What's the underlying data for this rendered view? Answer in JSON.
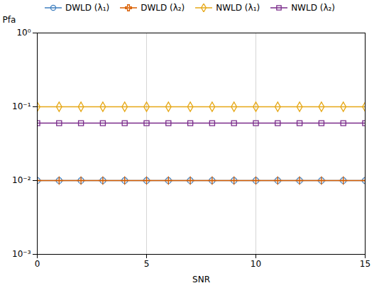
{
  "chart_data": {
    "type": "line",
    "xlabel": "SNR",
    "ylabel": "Pfa",
    "x": [
      0,
      1,
      2,
      3,
      4,
      5,
      6,
      7,
      8,
      9,
      10,
      11,
      12,
      13,
      14,
      15
    ],
    "series": [
      {
        "name": "DWLD (λ₁)",
        "color": "#3F7FBF",
        "marker": "circle",
        "values": [
          0.01,
          0.01,
          0.01,
          0.01,
          0.01,
          0.01,
          0.01,
          0.01,
          0.01,
          0.01,
          0.01,
          0.01,
          0.01,
          0.01,
          0.01,
          0.01
        ]
      },
      {
        "name": "DWLD (λ₂)",
        "color": "#D95F02",
        "marker": "plus",
        "values": [
          0.01,
          0.01,
          0.01,
          0.01,
          0.01,
          0.01,
          0.01,
          0.01,
          0.01,
          0.01,
          0.01,
          0.01,
          0.01,
          0.01,
          0.01,
          0.01
        ]
      },
      {
        "name": "NWLD (λ₁)",
        "color": "#E6A817",
        "marker": "diamond",
        "values": [
          0.1,
          0.1,
          0.1,
          0.1,
          0.1,
          0.1,
          0.1,
          0.1,
          0.1,
          0.1,
          0.1,
          0.1,
          0.1,
          0.1,
          0.1,
          0.1
        ]
      },
      {
        "name": "NWLD (λ₂)",
        "color": "#7B2D8B",
        "marker": "square",
        "values": [
          0.06,
          0.06,
          0.06,
          0.06,
          0.06,
          0.06,
          0.06,
          0.06,
          0.06,
          0.06,
          0.06,
          0.06,
          0.06,
          0.06,
          0.06,
          0.06
        ]
      }
    ],
    "xlim": [
      0,
      15
    ],
    "xticks": [
      0,
      5,
      10,
      15
    ],
    "ylim": [
      0.001,
      1
    ],
    "yticks": [
      {
        "value": 0.001,
        "label": "10⁻³"
      },
      {
        "value": 0.01,
        "label": "10⁻²"
      },
      {
        "value": 0.1,
        "label": "10⁻¹"
      },
      {
        "value": 1,
        "label": "10⁰"
      }
    ],
    "log": "y",
    "grid": true,
    "legend": "top"
  }
}
